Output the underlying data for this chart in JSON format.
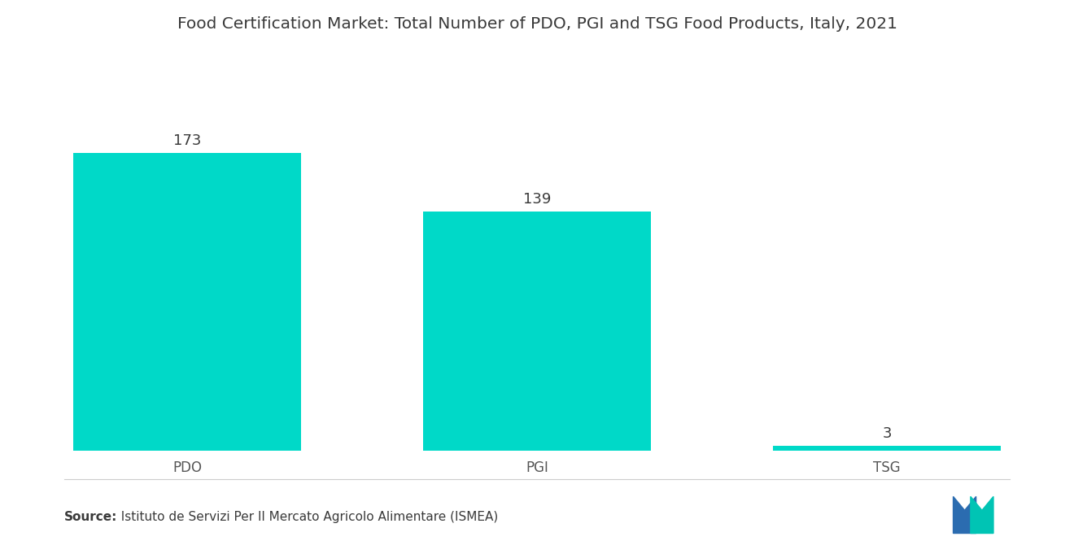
{
  "categories": [
    "PDO",
    "PGI",
    "TSG"
  ],
  "values": [
    173,
    139,
    3
  ],
  "bar_color": "#00D9C8",
  "title": "Food Certification Market: Total Number of PDO, PGI and TSG Food Products, Italy, 2021",
  "title_fontsize": 14.5,
  "source_label": "Source:",
  "source_text": "  Istituto de Servizi Per Il Mercato Agricolo Alimentare (ISMEA)",
  "source_fontsize": 11,
  "value_fontsize": 13,
  "xlabel_fontsize": 12,
  "bar_width": 0.65,
  "ylim": [
    0,
    220
  ],
  "bg_color": "#FFFFFF",
  "text_color": "#3a3a3a",
  "label_color": "#555555",
  "logo_blue": "#2B6CB0",
  "logo_teal": "#00C4B4"
}
